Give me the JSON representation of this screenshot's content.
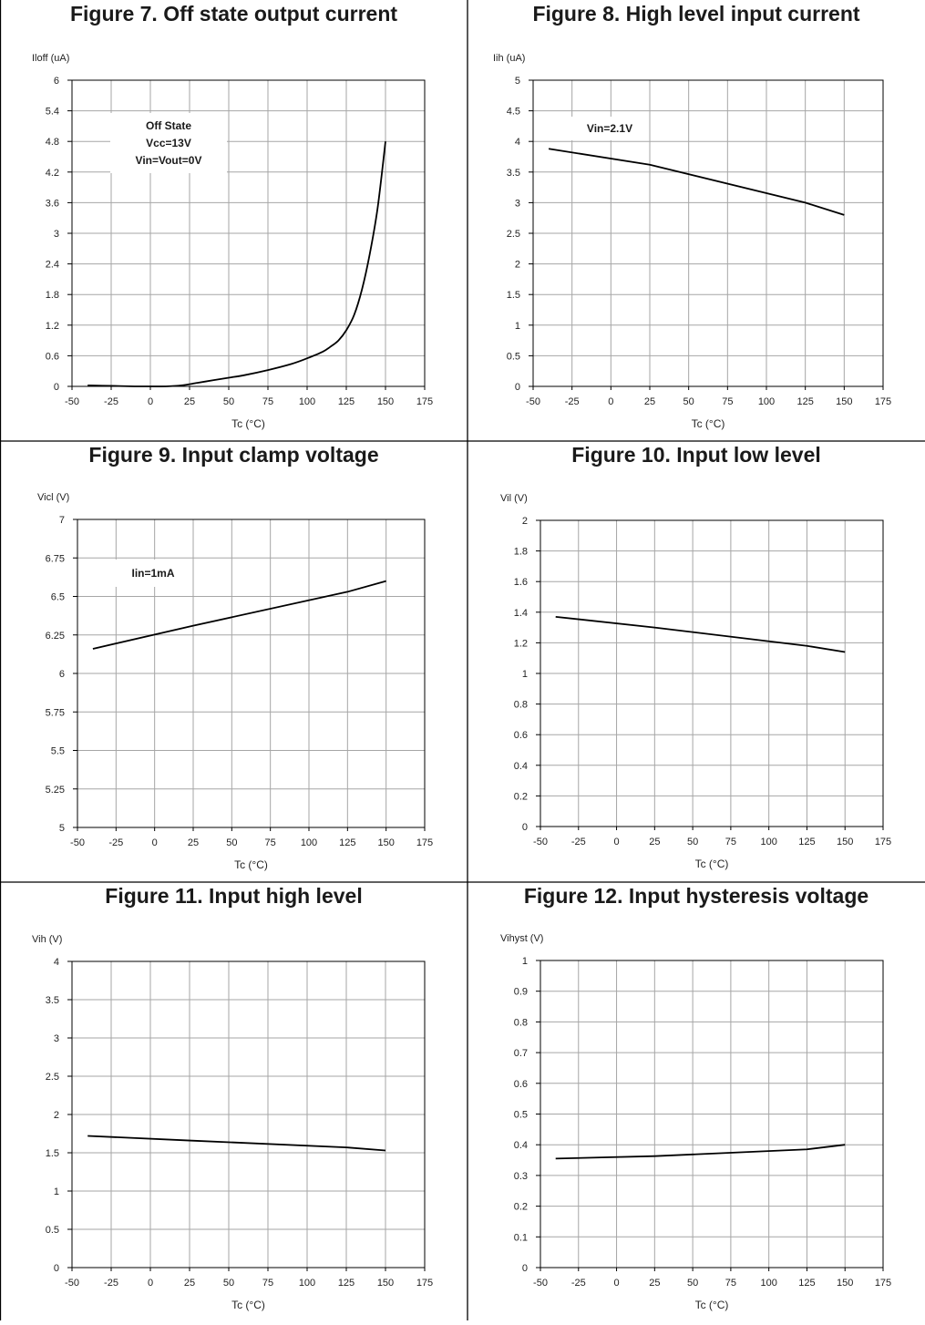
{
  "chart_data": [
    {
      "type": "line",
      "title": "Figure 7. Off state output current",
      "ylabel": "Iloff (uA)",
      "xlabel": "Tc (°C)",
      "xlim": [
        -50,
        175
      ],
      "ylim": [
        0,
        6
      ],
      "x_ticks": [
        "-50",
        "-25",
        "0",
        "25",
        "50",
        "75",
        "100",
        "125",
        "150",
        "175"
      ],
      "y_ticks": [
        "0",
        "0.6",
        "1.2",
        "1.8",
        "2.4",
        "3",
        "3.6",
        "4.2",
        "4.8",
        "5.4",
        "6"
      ],
      "grid": true,
      "annotation": [
        "Off State",
        "Vcc=13V",
        "Vin=Vout=0V"
      ],
      "series": [
        {
          "x": [
            -40,
            -25,
            -10,
            0,
            10,
            20,
            30,
            40,
            50,
            60,
            75,
            90,
            100,
            110,
            115,
            120,
            125,
            130,
            135,
            140,
            145,
            150
          ],
          "y": [
            0.02,
            0.01,
            0.0,
            0.0,
            0.0,
            0.02,
            0.07,
            0.12,
            0.17,
            0.22,
            0.32,
            0.44,
            0.55,
            0.68,
            0.78,
            0.9,
            1.1,
            1.4,
            1.9,
            2.6,
            3.5,
            4.8
          ]
        }
      ]
    },
    {
      "type": "line",
      "title": "Figure 8. High level input current",
      "ylabel": "Iih (uA)",
      "xlabel": "Tc (°C)",
      "xlim": [
        -50,
        175
      ],
      "ylim": [
        0,
        5
      ],
      "x_ticks": [
        "-50",
        "-25",
        "0",
        "25",
        "50",
        "75",
        "100",
        "125",
        "150",
        "175"
      ],
      "y_ticks": [
        "0",
        "0.5",
        "1",
        "1.5",
        "2",
        "2.5",
        "3",
        "3.5",
        "4",
        "4.5",
        "5"
      ],
      "grid": true,
      "annotation": [
        "Vin=2.1V"
      ],
      "series": [
        {
          "x": [
            -40,
            25,
            125,
            150
          ],
          "y": [
            3.88,
            3.62,
            3.0,
            2.8
          ]
        }
      ]
    },
    {
      "type": "line",
      "title": "Figure 9. Input clamp voltage",
      "ylabel": "Vicl (V)",
      "xlabel": "Tc (°C)",
      "xlim": [
        -50,
        175
      ],
      "ylim": [
        5,
        7
      ],
      "x_ticks": [
        "-50",
        "-25",
        "0",
        "25",
        "50",
        "75",
        "100",
        "125",
        "150",
        "175"
      ],
      "y_ticks": [
        "5",
        "5.25",
        "5.5",
        "5.75",
        "6",
        "6.25",
        "6.5",
        "6.75",
        "7"
      ],
      "grid": true,
      "annotation": [
        "Iin=1mA"
      ],
      "series": [
        {
          "x": [
            -40,
            25,
            125,
            150
          ],
          "y": [
            6.16,
            6.31,
            6.53,
            6.6
          ]
        }
      ]
    },
    {
      "type": "line",
      "title": "Figure 10. Input low level",
      "ylabel": "Vil (V)",
      "xlabel": "Tc (°C)",
      "xlim": [
        -50,
        175
      ],
      "ylim": [
        0,
        2
      ],
      "x_ticks": [
        "-50",
        "-25",
        "0",
        "25",
        "50",
        "75",
        "100",
        "125",
        "150",
        "175"
      ],
      "y_ticks": [
        "0",
        "0.2",
        "0.4",
        "0.6",
        "0.8",
        "1",
        "1.2",
        "1.4",
        "1.6",
        "1.8",
        "2"
      ],
      "grid": true,
      "annotation": [],
      "series": [
        {
          "x": [
            -40,
            25,
            125,
            150
          ],
          "y": [
            1.37,
            1.3,
            1.18,
            1.14
          ]
        }
      ]
    },
    {
      "type": "line",
      "title": "Figure 11. Input high level",
      "ylabel": "Vih (V)",
      "xlabel": "Tc (°C)",
      "xlim": [
        -50,
        175
      ],
      "ylim": [
        0,
        4
      ],
      "x_ticks": [
        "-50",
        "-25",
        "0",
        "25",
        "50",
        "75",
        "100",
        "125",
        "150",
        "175"
      ],
      "y_ticks": [
        "0",
        "0.5",
        "1",
        "1.5",
        "2",
        "2.5",
        "3",
        "3.5",
        "4"
      ],
      "grid": true,
      "annotation": [],
      "series": [
        {
          "x": [
            -40,
            25,
            125,
            150
          ],
          "y": [
            1.72,
            1.66,
            1.57,
            1.53
          ]
        }
      ]
    },
    {
      "type": "line",
      "title": "Figure 12. Input hysteresis voltage",
      "ylabel": "Vihyst (V)",
      "xlabel": "Tc (°C)",
      "xlim": [
        -50,
        175
      ],
      "ylim": [
        0,
        1
      ],
      "x_ticks": [
        "-50",
        "-25",
        "0",
        "25",
        "50",
        "75",
        "100",
        "125",
        "150",
        "175"
      ],
      "y_ticks": [
        "0",
        "0.1",
        "0.2",
        "0.3",
        "0.4",
        "0.5",
        "0.6",
        "0.7",
        "0.8",
        "0.9",
        "1"
      ],
      "grid": true,
      "annotation": [],
      "series": [
        {
          "x": [
            -40,
            25,
            125,
            150
          ],
          "y": [
            0.355,
            0.363,
            0.385,
            0.4
          ]
        }
      ]
    }
  ]
}
